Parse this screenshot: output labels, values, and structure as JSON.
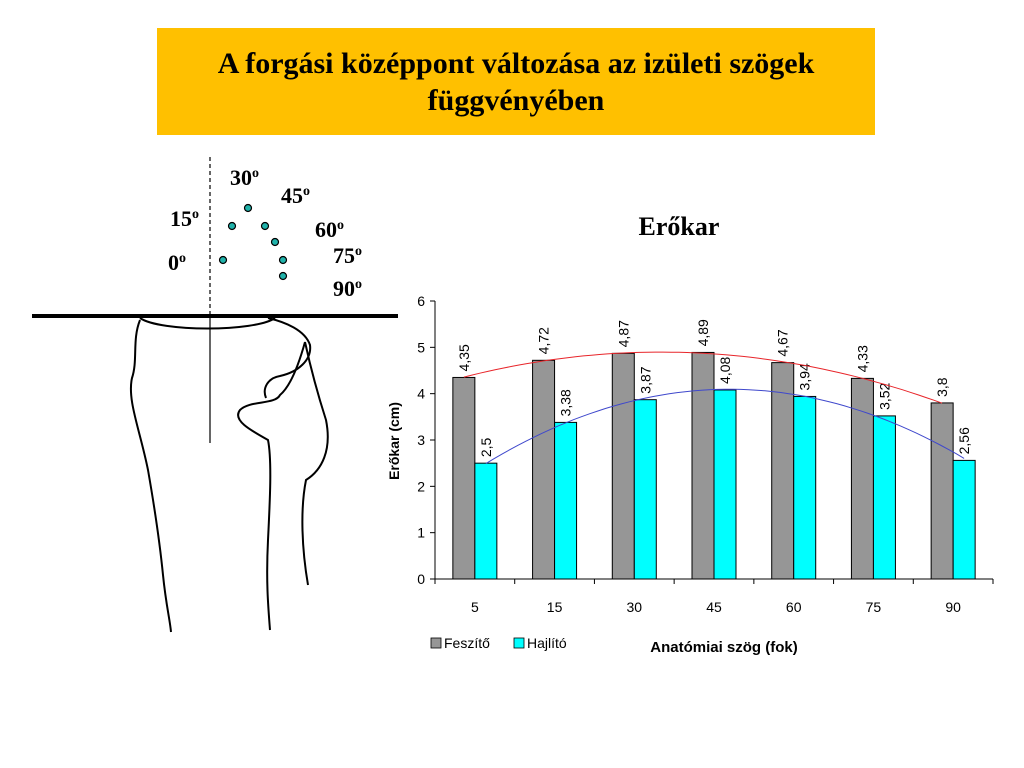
{
  "slide": {
    "title": "A forgási középpont változása az izületi szögek függvényében"
  },
  "knee_diagram": {
    "angle_labels": [
      {
        "label": "0",
        "sup": "o"
      },
      {
        "label": "15",
        "sup": "o"
      },
      {
        "label": "30",
        "sup": "o"
      },
      {
        "label": "45",
        "sup": "o"
      },
      {
        "label": "60",
        "sup": "o"
      },
      {
        "label": "75",
        "sup": "o"
      },
      {
        "label": "90",
        "sup": "o"
      }
    ],
    "dot_color": "#20b2aa"
  },
  "chart_data": {
    "type": "bar",
    "title": "Erőkar",
    "xlabel": "Anatómiai  szög (fok)",
    "ylabel": "Erőkar  (cm)",
    "ylim": [
      0,
      6
    ],
    "yticks": [
      "0",
      "1",
      "2",
      "3",
      "4",
      "5",
      "6"
    ],
    "categories": [
      "5",
      "15",
      "30",
      "45",
      "60",
      "75",
      "90"
    ],
    "series": [
      {
        "name": "Feszítő",
        "color": "#969696",
        "trend_color": "#e8252a",
        "values": [
          4.35,
          4.72,
          4.87,
          4.89,
          4.67,
          4.33,
          3.8
        ],
        "labels": [
          "4,35",
          "4,72",
          "4,87",
          "4,89",
          "4,67",
          "4,33",
          "3,8"
        ]
      },
      {
        "name": "Hajlító",
        "color": "#00ffff",
        "trend_color": "#3f48cc",
        "values": [
          2.5,
          3.38,
          3.87,
          4.08,
          3.94,
          3.52,
          2.56
        ],
        "labels": [
          "2,5",
          "3,38",
          "3,87",
          "4,08",
          "3,94",
          "3,52",
          "2,56"
        ]
      }
    ],
    "grid": false,
    "legend": "bottom-left"
  }
}
